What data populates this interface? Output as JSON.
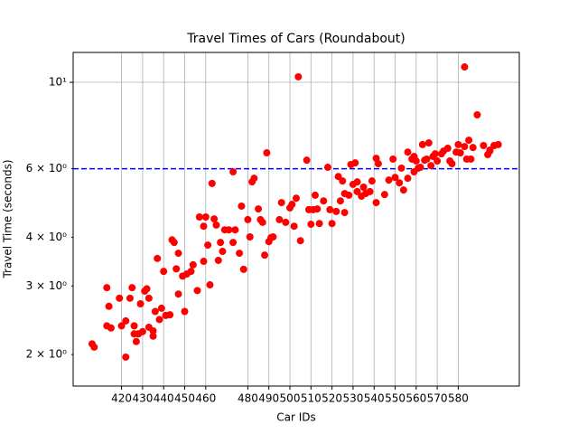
{
  "chart_data": {
    "type": "scatter",
    "title": "Travel Times of Cars (Roundabout)",
    "xlabel": "Car IDs",
    "ylabel": "Travel Time (seconds)",
    "yscale": "log",
    "grid": true,
    "xlim": [
      397,
      609
    ],
    "ylim": [
      1.66,
      11.93
    ],
    "xticks": [
      420,
      430,
      440,
      450,
      460,
      480,
      490,
      500,
      510,
      520,
      530,
      540,
      550,
      560,
      570,
      580
    ],
    "yticks": [
      {
        "value": 2,
        "label": "2 × 10⁰"
      },
      {
        "value": 3,
        "label": "3 × 10⁰"
      },
      {
        "value": 4,
        "label": "4 × 10⁰"
      },
      {
        "value": 6,
        "label": "6 × 10⁰"
      },
      {
        "value": 10,
        "label": "10¹"
      }
    ],
    "hline": {
      "y": 6,
      "color": "#0000ff",
      "linestyle": "dashed"
    },
    "x": [
      406,
      407,
      413,
      414,
      413,
      415,
      419,
      420,
      422,
      422,
      425,
      424,
      426,
      426,
      427,
      428,
      429,
      430,
      431,
      432,
      433,
      433,
      435,
      435,
      436,
      437,
      438,
      439,
      440,
      441,
      443,
      444,
      445,
      447,
      446,
      447,
      449,
      450,
      451,
      453,
      454,
      456,
      457,
      459,
      459,
      460,
      461,
      462,
      463,
      464,
      465,
      466,
      467,
      468,
      469,
      471,
      473,
      473,
      474,
      476,
      477,
      478,
      480,
      481,
      482,
      483,
      485,
      486,
      487,
      488,
      489,
      490,
      491,
      492,
      495,
      496,
      498,
      500,
      501,
      502,
      503,
      504,
      505,
      508,
      509,
      510,
      511,
      512,
      513,
      514,
      516,
      518,
      519,
      520,
      522,
      523,
      524,
      525,
      526,
      526,
      528,
      529,
      530,
      531,
      532,
      532,
      534,
      535,
      536,
      538,
      539,
      541,
      541,
      542,
      545,
      547,
      549,
      550,
      552,
      553,
      554,
      556,
      556,
      558,
      559,
      559,
      560,
      561,
      562,
      563,
      564,
      565,
      566,
      567,
      568,
      569,
      570,
      572,
      573,
      575,
      576,
      577,
      579,
      580,
      581,
      583,
      583,
      584,
      585,
      586,
      587,
      589,
      592,
      594,
      595,
      595,
      597,
      599
    ],
    "series": [
      {
        "color": "#ff0000",
        "values": [
          2.13,
          2.09,
          2.97,
          2.66,
          2.37,
          2.34,
          2.79,
          2.37,
          1.97,
          2.44,
          2.97,
          2.79,
          2.26,
          2.37,
          2.16,
          2.26,
          2.7,
          2.29,
          2.91,
          2.95,
          2.79,
          2.35,
          2.23,
          2.3,
          2.58,
          3.53,
          2.46,
          2.63,
          3.27,
          2.52,
          2.53,
          3.94,
          3.88,
          3.64,
          3.32,
          2.86,
          3.18,
          2.58,
          3.22,
          3.27,
          3.4,
          2.92,
          4.51,
          4.27,
          3.47,
          4.51,
          3.82,
          3.02,
          5.5,
          4.46,
          4.3,
          3.49,
          3.88,
          3.68,
          4.18,
          4.18,
          5.89,
          3.88,
          4.18,
          3.64,
          4.81,
          3.31,
          4.44,
          4.01,
          5.55,
          5.67,
          4.73,
          4.44,
          4.37,
          3.6,
          6.59,
          3.9,
          3.99,
          4.01,
          4.44,
          4.91,
          4.37,
          4.76,
          4.86,
          4.27,
          5.04,
          10.33,
          3.92,
          6.31,
          4.71,
          4.32,
          4.71,
          5.13,
          4.73,
          4.34,
          4.96,
          6.05,
          4.71,
          4.34,
          4.66,
          5.73,
          4.96,
          5.58,
          5.18,
          4.63,
          5.13,
          6.15,
          5.47,
          6.21,
          5.24,
          5.55,
          5.1,
          5.38,
          5.18,
          5.24,
          5.58,
          4.91,
          6.38,
          6.18,
          5.15,
          5.61,
          6.35,
          5.7,
          5.52,
          6.02,
          5.29,
          6.62,
          5.67,
          6.35,
          6.45,
          5.89,
          6.28,
          6.02,
          6.05,
          6.92,
          6.31,
          6.35,
          6.99,
          6.11,
          6.45,
          6.55,
          6.28,
          6.55,
          6.66,
          6.77,
          6.28,
          6.18,
          6.62,
          6.92,
          6.59,
          10.95,
          6.84,
          6.35,
          7.1,
          6.35,
          6.8,
          8.25,
          6.88,
          6.52,
          6.66,
          6.7,
          6.88,
          6.92
        ]
      }
    ]
  }
}
